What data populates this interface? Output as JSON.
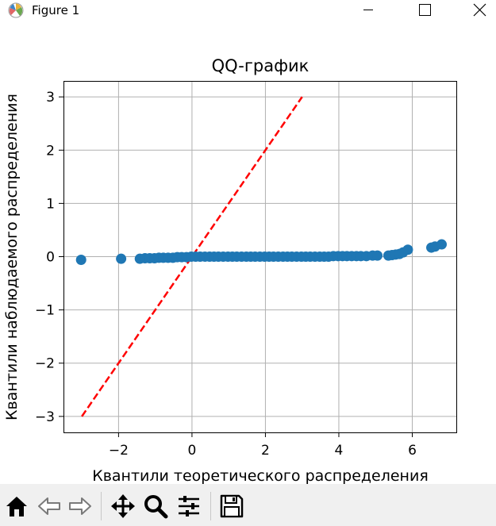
{
  "window": {
    "title": "Figure 1"
  },
  "toolbar": {
    "items": [
      {
        "icon": "home-icon"
      },
      {
        "icon": "back-arrow-icon"
      },
      {
        "icon": "forward-arrow-icon"
      },
      {
        "icon": "pan-icon"
      },
      {
        "icon": "zoom-icon"
      },
      {
        "icon": "configure-subplots-icon"
      },
      {
        "icon": "save-icon"
      }
    ]
  },
  "chart_data": {
    "type": "scatter",
    "title": "QQ-график",
    "xlabel": "Квантили теоретического распределения",
    "ylabel": "Квантили наблюдаемого распределения",
    "xlim": [
      -3.5,
      7.2
    ],
    "ylim": [
      -3.3,
      3.3
    ],
    "xticks": [
      -2,
      0,
      2,
      4,
      6
    ],
    "yticks": [
      -3,
      -2,
      -1,
      0,
      1,
      2,
      3
    ],
    "xtick_labels": [
      "−2",
      "0",
      "2",
      "4",
      "6"
    ],
    "ytick_labels": [
      "−3",
      "−2",
      "−1",
      "0",
      "1",
      "2",
      "3"
    ],
    "grid": true,
    "marker_color": "#1f77b4",
    "reference_line": {
      "x": [
        -3,
        3
      ],
      "y": [
        -3,
        3
      ],
      "color": "#ff0000",
      "style": "dashed"
    },
    "points": [
      [
        -3.02,
        -0.06
      ],
      [
        -1.93,
        -0.04
      ],
      [
        -1.42,
        -0.04
      ],
      [
        -1.28,
        -0.03
      ],
      [
        -1.15,
        -0.03
      ],
      [
        -1.02,
        -0.03
      ],
      [
        -0.9,
        -0.02
      ],
      [
        -0.78,
        -0.02
      ],
      [
        -0.65,
        -0.02
      ],
      [
        -0.52,
        -0.02
      ],
      [
        -0.4,
        -0.01
      ],
      [
        -0.28,
        -0.01
      ],
      [
        -0.15,
        -0.01
      ],
      [
        -0.02,
        0.0
      ],
      [
        0.1,
        0.0
      ],
      [
        0.22,
        0.0
      ],
      [
        0.35,
        0.0
      ],
      [
        0.48,
        0.0
      ],
      [
        0.6,
        0.0
      ],
      [
        0.72,
        0.0
      ],
      [
        0.85,
        0.0
      ],
      [
        0.98,
        0.0
      ],
      [
        1.1,
        0.0
      ],
      [
        1.22,
        0.0
      ],
      [
        1.35,
        0.0
      ],
      [
        1.48,
        0.0
      ],
      [
        1.6,
        0.0
      ],
      [
        1.72,
        0.0
      ],
      [
        1.85,
        0.0
      ],
      [
        1.98,
        0.0
      ],
      [
        2.1,
        0.0
      ],
      [
        2.22,
        0.0
      ],
      [
        2.35,
        0.0
      ],
      [
        2.48,
        0.0
      ],
      [
        2.6,
        0.0
      ],
      [
        2.72,
        0.0
      ],
      [
        2.85,
        0.0
      ],
      [
        2.98,
        0.0
      ],
      [
        3.1,
        0.0
      ],
      [
        3.22,
        0.0
      ],
      [
        3.35,
        0.0
      ],
      [
        3.48,
        0.0
      ],
      [
        3.6,
        0.0
      ],
      [
        3.72,
        0.0
      ],
      [
        3.85,
        0.01
      ],
      [
        3.98,
        0.01
      ],
      [
        4.1,
        0.01
      ],
      [
        4.22,
        0.01
      ],
      [
        4.35,
        0.01
      ],
      [
        4.48,
        0.01
      ],
      [
        4.6,
        0.01
      ],
      [
        4.75,
        0.01
      ],
      [
        4.92,
        0.02
      ],
      [
        5.05,
        0.02
      ],
      [
        5.35,
        0.02
      ],
      [
        5.45,
        0.03
      ],
      [
        5.55,
        0.04
      ],
      [
        5.65,
        0.05
      ],
      [
        5.75,
        0.08
      ],
      [
        5.88,
        0.13
      ],
      [
        6.52,
        0.17
      ],
      [
        6.62,
        0.19
      ],
      [
        6.8,
        0.23
      ]
    ]
  }
}
